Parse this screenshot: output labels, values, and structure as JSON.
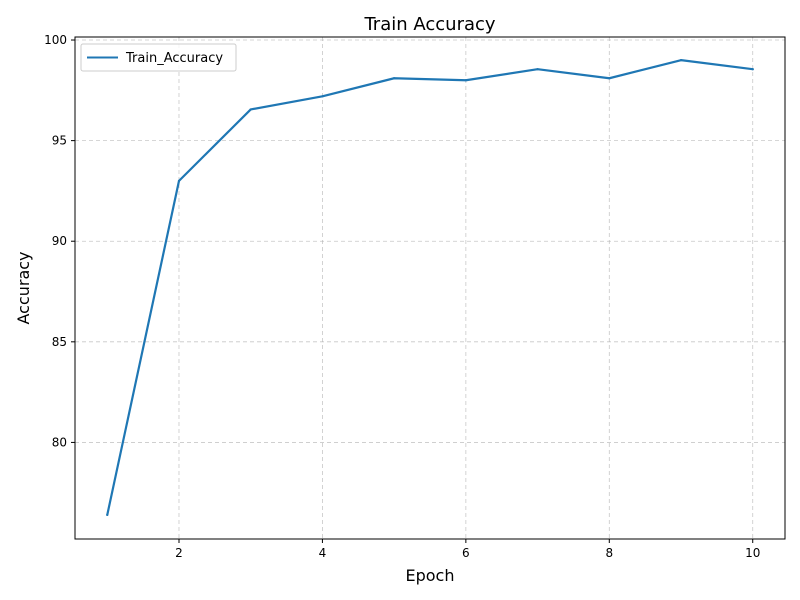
{
  "chart_data": {
    "type": "line",
    "title": "Train Accuracy",
    "xlabel": "Epoch",
    "ylabel": "Accuracy",
    "xlim": [
      0.55,
      10.45
    ],
    "ylim": [
      75.2,
      100.15
    ],
    "xticks": [
      2,
      4,
      6,
      8,
      10
    ],
    "yticks": [
      80,
      85,
      90,
      95,
      100
    ],
    "grid": true,
    "legend_position": "upper-left",
    "series": [
      {
        "name": "Train_Accuracy",
        "color": "#1f77b4",
        "x": [
          1,
          2,
          3,
          4,
          5,
          6,
          7,
          8,
          9,
          10
        ],
        "y": [
          76.4,
          93.0,
          96.55,
          97.2,
          98.1,
          98.0,
          98.55,
          98.1,
          99.0,
          98.55
        ]
      }
    ]
  }
}
